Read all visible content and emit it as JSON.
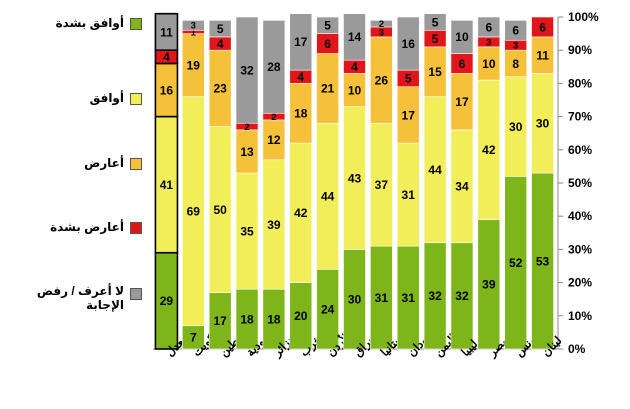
{
  "chart_data": {
    "type": "bar",
    "stacked": true,
    "categories": [
      "المعدل",
      "الكويت",
      "فلسطين",
      "السعودية",
      "الجزائر",
      "المغرب",
      "الأردن",
      "العراق",
      "موريتانيا",
      "السودان",
      "اليمن",
      "ليبيا",
      "مصر",
      "تونس",
      "لبنان"
    ],
    "series": [
      {
        "name": "أوافق بشدة",
        "color": "#7db51a",
        "values": [
          29,
          7,
          17,
          18,
          18,
          20,
          24,
          30,
          31,
          31,
          32,
          32,
          39,
          52,
          53
        ]
      },
      {
        "name": "أوافق",
        "color": "#f2ee5a",
        "values": [
          41,
          69,
          50,
          35,
          39,
          42,
          44,
          43,
          37,
          31,
          44,
          34,
          42,
          30,
          30
        ]
      },
      {
        "name": "أعارض",
        "color": "#f6c13a",
        "values": [
          16,
          19,
          23,
          13,
          12,
          18,
          21,
          10,
          26,
          17,
          15,
          17,
          10,
          8,
          11
        ]
      },
      {
        "name": "أعارض بشدة",
        "color": "#e0161b",
        "values": [
          4,
          1,
          4,
          2,
          2,
          4,
          6,
          4,
          3,
          5,
          5,
          6,
          3,
          3,
          6
        ]
      },
      {
        "name": "لا أعرف / رفض الإجابة",
        "color": "#9a9a9a",
        "values": [
          11,
          3,
          5,
          32,
          28,
          17,
          5,
          14,
          2,
          16,
          5,
          10,
          6,
          6,
          0
        ]
      }
    ],
    "yticks": [
      "0%",
      "10%",
      "20%",
      "30%",
      "40%",
      "50%",
      "60%",
      "70%",
      "80%",
      "90%",
      "100%"
    ],
    "ylim": [
      0,
      100
    ],
    "grid": false,
    "legend_position": "left"
  }
}
